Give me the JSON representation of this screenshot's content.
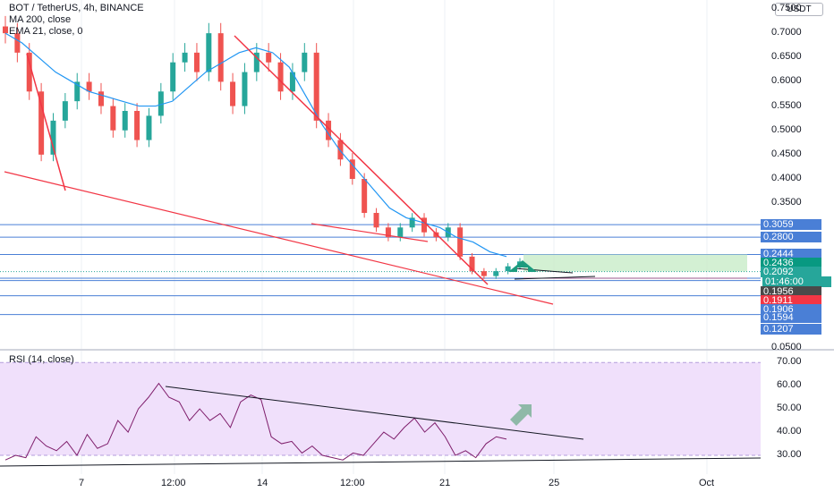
{
  "main_legend": {
    "symbol_line": "BOT / TetherUS, 4h, BINANCE",
    "ma_line": "MA 200, close",
    "ema_line": "EMA 21, close, 0"
  },
  "rsi_legend": "RSI (14, close)",
  "currency_button": "USDT",
  "price_axis_labels": [
    "0.7500",
    "0.7000",
    "0.6500",
    "0.6000",
    "0.5500",
    "0.5000",
    "0.4500",
    "0.4000",
    "0.3500",
    "0.0500"
  ],
  "rsi_axis_labels": [
    "70.00",
    "60.00",
    "50.00",
    "40.00",
    "30.00"
  ],
  "time_axis_labels": [
    "7",
    "12:00",
    "14",
    "12:00",
    "21",
    "25",
    "Oct"
  ],
  "price_tags": [
    {
      "text": "0.3059",
      "color": "#4a7fd6"
    },
    {
      "text": "0.2800",
      "color": "#4a7fd6"
    },
    {
      "text": "0.2444",
      "color": "#4a7fd6"
    },
    {
      "text": "0.2436",
      "color": "#089981"
    },
    {
      "text": "0.2092",
      "color": "#26a69a"
    },
    {
      "text": "01:46:00",
      "color": "#26a69a"
    },
    {
      "text": "0.1956",
      "color": "#4a4a4a"
    },
    {
      "text": "0.1911",
      "color": "#f23645"
    },
    {
      "text": "0.1906",
      "color": "#4a7fd6"
    },
    {
      "text": "0.1594",
      "color": "#4a7fd6"
    },
    {
      "text": "0.1207",
      "color": "#4a7fd6"
    }
  ],
  "colors": {
    "up": "#26a69a",
    "down": "#ef5350",
    "ema": "#2196f3",
    "trendline": "#f23645",
    "hline": "#4a7fd6",
    "rsi_line": "#7e1d6b",
    "rsi_band": "#f0e0fb",
    "target_box": "#c8ecc8",
    "arrow": "#1d9b7e"
  },
  "chart_data": [
    {
      "type": "candlestick",
      "title": "BOT / TetherUS, 4h, BINANCE",
      "ylim": [
        0.05,
        0.75
      ],
      "x_ticks": [
        "7",
        "12:00",
        "14",
        "12:00",
        "21",
        "25",
        "Oct"
      ],
      "series": [
        {
          "name": "EMA 21, close, 0",
          "values": [
            0.7,
            0.68,
            0.65,
            0.62,
            0.6,
            0.58,
            0.57,
            0.56,
            0.55,
            0.55,
            0.56,
            0.59,
            0.62,
            0.64,
            0.66,
            0.67,
            0.66,
            0.63,
            0.57,
            0.51,
            0.46,
            0.42,
            0.38,
            0.34,
            0.32,
            0.31,
            0.3,
            0.28,
            0.27,
            0.25,
            0.24
          ]
        }
      ],
      "candles_close": [
        0.7,
        0.66,
        0.58,
        0.45,
        0.52,
        0.56,
        0.6,
        0.58,
        0.55,
        0.5,
        0.54,
        0.48,
        0.53,
        0.58,
        0.64,
        0.66,
        0.62,
        0.7,
        0.6,
        0.55,
        0.62,
        0.66,
        0.64,
        0.58,
        0.62,
        0.66,
        0.52,
        0.48,
        0.44,
        0.4,
        0.33,
        0.3,
        0.28,
        0.3,
        0.32,
        0.29,
        0.28,
        0.3,
        0.24,
        0.21,
        0.2,
        0.21,
        0.22,
        0.23
      ]
    },
    {
      "type": "line",
      "title": "RSI (14, close)",
      "ylim": [
        25,
        72
      ],
      "y_ticks": [
        70,
        60,
        50,
        40,
        30
      ],
      "series": [
        {
          "name": "RSI (14, close)",
          "values": [
            28,
            30,
            29,
            38,
            34,
            32,
            36,
            30,
            39,
            33,
            35,
            45,
            40,
            50,
            55,
            61,
            55,
            53,
            45,
            50,
            45,
            48,
            42,
            53,
            56,
            54,
            38,
            35,
            36,
            31,
            34,
            30,
            29,
            28,
            31,
            30,
            35,
            40,
            37,
            42,
            46,
            40,
            44,
            38,
            30,
            32,
            29,
            35,
            38,
            37
          ]
        }
      ]
    }
  ]
}
